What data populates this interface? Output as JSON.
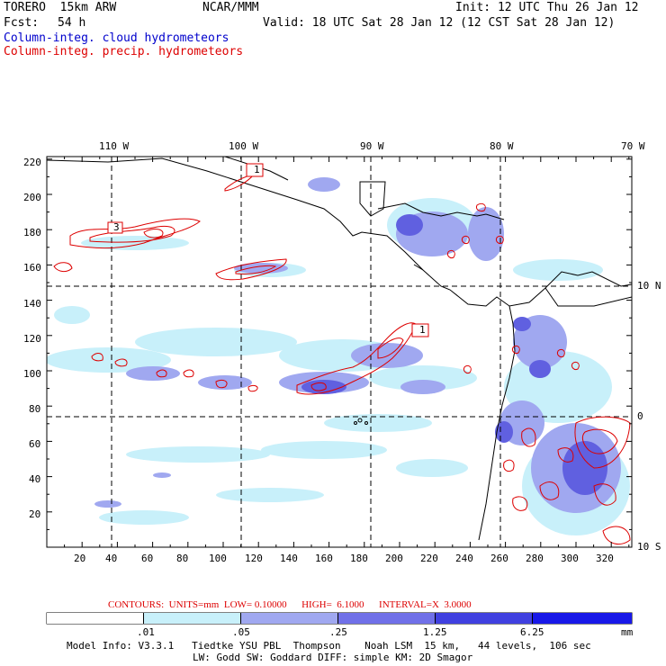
{
  "header": {
    "model": "TORERO  15km ARW",
    "center": "NCAR/MMM",
    "init": "Init: 12 UTC Thu 26 Jan 12",
    "fcst_label": "Fcst:",
    "fcst_value": "54 h",
    "valid": "Valid: 18 UTC Sat 28 Jan 12 (12 CST Sat 28 Jan 12)",
    "field_cloud": "Column-integ. cloud hydrometeors",
    "field_precip": "Column-integ. precip. hydrometeors"
  },
  "colors": {
    "cloud_text": "#0000cc",
    "precip_text": "#dd0000",
    "contour": "#dd0000",
    "shade_1": "#c8f0fa",
    "shade_2": "#a0a8f0",
    "shade_3": "#7070e8",
    "shade_4": "#4040e0",
    "shade_5": "#1818e8"
  },
  "map": {
    "lon_labels": [
      "110 W",
      "100 W",
      "90 W",
      "80 W",
      "70 W"
    ],
    "lat_labels": [
      "10 N",
      "0",
      "10 S"
    ],
    "y_ticks": [
      "220",
      "200",
      "180",
      "160",
      "140",
      "120",
      "100",
      "80",
      "60",
      "40",
      "20"
    ],
    "x_ticks": [
      "20",
      "40",
      "60",
      "80",
      "100",
      "120",
      "140",
      "160",
      "180",
      "200",
      "220",
      "240",
      "260",
      "280",
      "300",
      "320"
    ],
    "contour_labels": [
      "3",
      "1",
      "1"
    ]
  },
  "contour_info": {
    "text": "CONTOURS:  UNITS=mm  LOW= 0.10000      HIGH=  6.1000      INTERVAL=X  3.0000"
  },
  "colorbar": {
    "bounds": [
      ".01",
      ".05",
      ".25",
      "1.25",
      "6.25"
    ],
    "units": "mm"
  },
  "footer": {
    "line1": "Model Info: V3.3.1   Tiedtke YSU PBL  Thompson    Noah LSM  15 km,   44 levels,  106 sec",
    "line2": "LW: Godd SW: Goddard DIFF: simple KM: 2D Smagor"
  }
}
